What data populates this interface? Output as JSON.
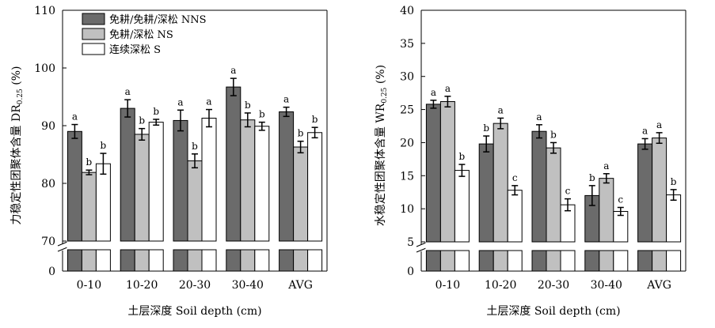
{
  "chart_data": [
    {
      "type": "bar",
      "ylabel_main": "力稳定性团聚体含量 DR",
      "ylabel_sub": "0.25",
      "ylabel_unit": " (%)",
      "xlabel": "土层深度 Soil depth (cm)",
      "categories": [
        "0-10",
        "10-20",
        "20-30",
        "30-40",
        "AVG"
      ],
      "ylim": [
        70,
        110
      ],
      "yticks": [
        "70",
        "80",
        "90",
        "100",
        "110"
      ],
      "break_axis_label": "0",
      "legend_position": "top-left",
      "series": [
        {
          "name": "免耕/免耕/深松 NNS",
          "fill": "#6b6b6b",
          "values": [
            89.0,
            93.0,
            90.9,
            96.7,
            92.4
          ],
          "errors": [
            1.2,
            1.5,
            1.8,
            1.5,
            0.8
          ],
          "letters": [
            "a",
            "a",
            "a",
            "a",
            "a"
          ]
        },
        {
          "name": "免耕/深松 NS",
          "fill": "#c0c0c0",
          "values": [
            81.9,
            88.5,
            83.9,
            91.0,
            86.3
          ],
          "errors": [
            0.4,
            1.0,
            1.2,
            1.2,
            1.0
          ],
          "letters": [
            "b",
            "b",
            "b",
            "b",
            "b"
          ]
        },
        {
          "name": "连续深松 S",
          "fill": "#ffffff",
          "values": [
            83.4,
            90.6,
            91.3,
            89.9,
            88.8
          ],
          "errors": [
            1.8,
            0.5,
            1.5,
            0.7,
            0.9
          ],
          "letters": [
            "b",
            "b",
            "a",
            "b",
            "b"
          ]
        }
      ]
    },
    {
      "type": "bar",
      "ylabel_main": "水稳定性团聚体含量 WR",
      "ylabel_sub": "0.25",
      "ylabel_unit": " (%)",
      "xlabel": "土层深度 Soil depth (cm)",
      "categories": [
        "0-10",
        "10-20",
        "20-30",
        "30-40",
        "AVG"
      ],
      "ylim": [
        5,
        40
      ],
      "yticks": [
        "5",
        "10",
        "15",
        "20",
        "25",
        "30",
        "35",
        "40"
      ],
      "break_axis_label": "0",
      "series": [
        {
          "name": "免耕/免耕/深松 NNS",
          "fill": "#6b6b6b",
          "values": [
            25.8,
            19.8,
            21.7,
            12.0,
            19.8
          ],
          "errors": [
            0.6,
            1.2,
            1.0,
            1.5,
            0.8
          ],
          "letters": [
            "a",
            "b",
            "a",
            "b",
            "a"
          ]
        },
        {
          "name": "免耕/深松 NS",
          "fill": "#c0c0c0",
          "values": [
            26.2,
            22.9,
            19.2,
            14.6,
            20.7
          ],
          "errors": [
            0.8,
            0.8,
            0.8,
            0.7,
            0.8
          ],
          "letters": [
            "a",
            "a",
            "b",
            "a",
            "a"
          ]
        },
        {
          "name": "连续深松 S",
          "fill": "#ffffff",
          "values": [
            15.8,
            12.8,
            10.6,
            9.6,
            12.1
          ],
          "errors": [
            0.9,
            0.7,
            0.9,
            0.6,
            0.8
          ],
          "letters": [
            "b",
            "c",
            "c",
            "c",
            "b"
          ]
        }
      ]
    }
  ]
}
